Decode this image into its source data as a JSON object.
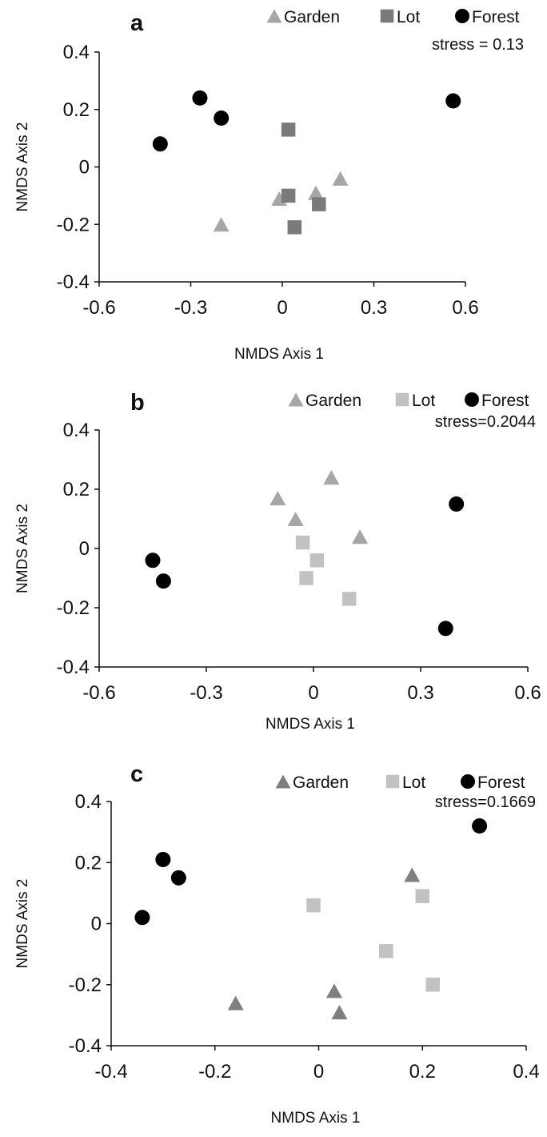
{
  "chart_data": [
    {
      "type": "scatter",
      "panel_label": "a",
      "xlabel": "NMDS Axis 1",
      "ylabel": "NMDS Axis 2",
      "xlim": [
        -0.6,
        0.6
      ],
      "ylim": [
        -0.4,
        0.4
      ],
      "xticks": [
        -0.6,
        -0.3,
        0,
        0.3,
        0.6
      ],
      "yticks": [
        -0.4,
        -0.2,
        0,
        0.2,
        0.4
      ],
      "xtick_labels": [
        "-0.6",
        "-0.3",
        "0",
        "0.3",
        "0.6"
      ],
      "ytick_labels": [
        "-0.4",
        "-0.2",
        "0",
        "0.2",
        "0.4"
      ],
      "stress": "stress = 0.13",
      "legend_position": "top",
      "series": [
        {
          "name": "Garden",
          "marker": "triangle",
          "color": "#a6a6a6",
          "points": [
            [
              -0.2,
              -0.2
            ],
            [
              -0.01,
              -0.11
            ],
            [
              0.11,
              -0.09
            ],
            [
              0.19,
              -0.04
            ]
          ]
        },
        {
          "name": "Lot",
          "marker": "square",
          "color": "#7a7a7a",
          "points": [
            [
              0.02,
              0.13
            ],
            [
              0.02,
              -0.1
            ],
            [
              0.12,
              -0.13
            ],
            [
              0.04,
              -0.21
            ]
          ]
        },
        {
          "name": "Forest",
          "marker": "circle",
          "color": "#000000",
          "points": [
            [
              -0.4,
              0.08
            ],
            [
              -0.27,
              0.24
            ],
            [
              -0.2,
              0.17
            ],
            [
              0.56,
              0.23
            ]
          ]
        }
      ]
    },
    {
      "type": "scatter",
      "panel_label": "b",
      "xlabel": "NMDS Axis 1",
      "ylabel": "NMDS Axis 2",
      "xlim": [
        -0.6,
        0.6
      ],
      "ylim": [
        -0.4,
        0.4
      ],
      "xticks": [
        -0.6,
        -0.3,
        0,
        0.3,
        0.6
      ],
      "yticks": [
        -0.4,
        -0.2,
        0,
        0.2,
        0.4
      ],
      "xtick_labels": [
        "-0.6",
        "-0.3",
        "0",
        "0.3",
        "0.6"
      ],
      "ytick_labels": [
        "-0.4",
        "-0.2",
        "0",
        "0.2",
        "0.4"
      ],
      "stress": "stress=0.2044",
      "legend_position": "top",
      "series": [
        {
          "name": "Garden",
          "marker": "triangle",
          "color": "#a6a6a6",
          "points": [
            [
              -0.1,
              0.17
            ],
            [
              -0.05,
              0.1
            ],
            [
              0.05,
              0.24
            ],
            [
              0.13,
              0.04
            ]
          ]
        },
        {
          "name": "Lot",
          "marker": "square",
          "color": "#c2c2c2",
          "points": [
            [
              -0.03,
              0.02
            ],
            [
              0.01,
              -0.04
            ],
            [
              -0.02,
              -0.1
            ],
            [
              0.1,
              -0.17
            ]
          ]
        },
        {
          "name": "Forest",
          "marker": "circle",
          "color": "#000000",
          "points": [
            [
              -0.45,
              -0.04
            ],
            [
              -0.42,
              -0.11
            ],
            [
              0.4,
              0.15
            ],
            [
              0.37,
              -0.27
            ]
          ]
        }
      ]
    },
    {
      "type": "scatter",
      "panel_label": "c",
      "xlabel": "NMDS Axis 1",
      "ylabel": "NMDS Axis 2",
      "xlim": [
        -0.4,
        0.4
      ],
      "ylim": [
        -0.4,
        0.4
      ],
      "xticks": [
        -0.4,
        -0.2,
        0,
        0.2,
        0.4
      ],
      "yticks": [
        -0.4,
        -0.2,
        0,
        0.2,
        0.4
      ],
      "xtick_labels": [
        "-0.4",
        "-0.2",
        "0",
        "0.2",
        "0.4"
      ],
      "ytick_labels": [
        "-0.4",
        "-0.2",
        "0",
        "0.2",
        "0.4"
      ],
      "stress": "stress=0.1669",
      "legend_position": "top",
      "series": [
        {
          "name": "Garden",
          "marker": "triangle",
          "color": "#7f7f7f",
          "points": [
            [
              0.18,
              0.16
            ],
            [
              -0.16,
              -0.26
            ],
            [
              0.03,
              -0.22
            ],
            [
              0.04,
              -0.29
            ]
          ]
        },
        {
          "name": "Lot",
          "marker": "square",
          "color": "#c2c2c2",
          "points": [
            [
              -0.01,
              0.06
            ],
            [
              0.2,
              0.09
            ],
            [
              0.13,
              -0.09
            ],
            [
              0.22,
              -0.2
            ]
          ]
        },
        {
          "name": "Forest",
          "marker": "circle",
          "color": "#000000",
          "points": [
            [
              -0.34,
              0.02
            ],
            [
              -0.3,
              0.21
            ],
            [
              -0.27,
              0.15
            ],
            [
              0.31,
              0.32
            ]
          ]
        }
      ]
    }
  ]
}
